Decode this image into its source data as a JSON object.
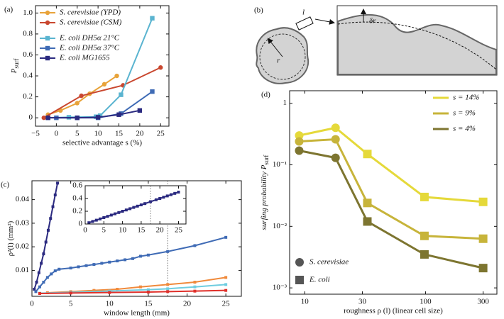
{
  "chart_data": [
    {
      "type": "line",
      "panel": "(a)",
      "xlabel": "selective advantage s (%)",
      "ylabel": "P",
      "ylabel_sub": "surf",
      "xlim": [
        -5,
        27
      ],
      "xticks": [
        {
          "value": -5,
          "label": "−5"
        },
        0,
        5,
        10,
        15,
        20,
        25
      ],
      "ylim": [
        -0.08,
        1.07
      ],
      "yticks": [
        0,
        0.2,
        0.4,
        0.6,
        0.8,
        {
          "value": 1,
          "label": "1.0"
        }
      ],
      "legend": "upper left",
      "series": [
        {
          "name": "S. cerevisiae (YPD)",
          "color": "#e8a33a",
          "marker": "circle",
          "x": [
            -2,
            1,
            5,
            8,
            11.5,
            14.5
          ],
          "values": [
            0.03,
            0.07,
            0.14,
            0.23,
            0.32,
            0.4
          ]
        },
        {
          "name": "S. cerevisiae (CSM)",
          "color": "#c9472f",
          "marker": "circle",
          "x": [
            -3,
            6,
            16,
            25
          ],
          "values": [
            0,
            0.21,
            0.31,
            0.48
          ]
        },
        {
          "name": "E. coli DH5α 21°C",
          "color": "#5ab4d0",
          "marker": "square",
          "x": [
            -2,
            3,
            9.5,
            10.5,
            15.5,
            23
          ],
          "values": [
            0,
            0.005,
            0.01,
            0.02,
            0.22,
            0.95
          ]
        },
        {
          "name": "E. coli DH5α 37°C",
          "color": "#3f6bb5",
          "marker": "square",
          "x": [
            0,
            5,
            10,
            15.5,
            23
          ],
          "values": [
            0,
            0,
            0,
            0.04,
            0.25
          ]
        },
        {
          "name": "E. coli MG1655",
          "color": "#2b2a80",
          "marker": "square",
          "x": [
            -2,
            5,
            10,
            15,
            20
          ],
          "values": [
            0,
            0,
            0.005,
            0.03,
            0.07
          ]
        }
      ]
    },
    {
      "type": "line",
      "panel": "(c)",
      "xlabel": "window length (mm)",
      "ylabel": "ρ²(l) (mm²)",
      "xlim": [
        0,
        27
      ],
      "xticks": [
        0,
        5,
        10,
        15,
        20,
        25
      ],
      "ylim": [
        -0.001,
        0.048
      ],
      "yticks": [
        0.01,
        0.02,
        0.03,
        0.04
      ],
      "reference_x": 17.5,
      "series": [
        {
          "color": "#2b2a80",
          "marker": "square",
          "x": [
            0.3,
            0.6,
            0.9,
            1.2,
            1.5,
            1.8,
            2.1,
            2.4,
            2.7,
            3.0,
            3.3
          ],
          "values": [
            0.002,
            0.005,
            0.009,
            0.013,
            0.017,
            0.022,
            0.027,
            0.032,
            0.037,
            0.042,
            0.047
          ]
        },
        {
          "color": "#3f6bb5",
          "marker": "square",
          "x": [
            0.5,
            1,
            1.5,
            2,
            2.5,
            3,
            3.5,
            5,
            6,
            7,
            8,
            9,
            10,
            11,
            12,
            13,
            14,
            15,
            17.5,
            21,
            25
          ],
          "values": [
            0.001,
            0.003,
            0.005,
            0.007,
            0.0085,
            0.0098,
            0.0105,
            0.011,
            0.0115,
            0.012,
            0.0125,
            0.013,
            0.0135,
            0.014,
            0.0145,
            0.015,
            0.016,
            0.0165,
            0.018,
            0.0205,
            0.024
          ]
        },
        {
          "color": "#f08a3c",
          "marker": "square",
          "x": [
            2,
            5,
            8,
            11,
            14,
            17.5,
            21,
            25
          ],
          "values": [
            0.0005,
            0.001,
            0.0015,
            0.002,
            0.003,
            0.004,
            0.005,
            0.007
          ]
        },
        {
          "color": "#6fcde0",
          "marker": "square",
          "x": [
            1,
            5,
            10,
            15,
            17.5,
            21,
            25
          ],
          "values": [
            0.0003,
            0.0007,
            0.0012,
            0.0018,
            0.0022,
            0.003,
            0.004
          ]
        },
        {
          "color": "#e0302a",
          "marker": "square",
          "x": [
            1,
            5,
            10,
            15,
            17.5,
            21,
            25
          ],
          "values": [
            0.0002,
            0.0004,
            0.0006,
            0.0008,
            0.001,
            0.0012,
            0.0015
          ]
        }
      ]
    },
    {
      "type": "line",
      "xlim": [
        0,
        27
      ],
      "xticks": [
        0,
        5,
        10,
        15,
        20,
        25
      ],
      "ylim": [
        0,
        0.6
      ],
      "yticks": [
        0,
        0.2,
        0.4,
        0.6
      ],
      "reference_x": 17.5,
      "series": [
        {
          "color": "#2b2a80",
          "marker": "square",
          "x": [
            1,
            2,
            3,
            4,
            5,
            6,
            7,
            8,
            9,
            10,
            11,
            12,
            13,
            14,
            15,
            16,
            17.5,
            19,
            20,
            21,
            22,
            23,
            24,
            25
          ],
          "values": [
            0.02,
            0.04,
            0.06,
            0.08,
            0.1,
            0.12,
            0.14,
            0.16,
            0.18,
            0.2,
            0.22,
            0.24,
            0.26,
            0.28,
            0.3,
            0.32,
            0.35,
            0.38,
            0.4,
            0.42,
            0.44,
            0.46,
            0.48,
            0.5
          ]
        }
      ]
    },
    {
      "type": "line",
      "panel": "(d)",
      "xlabel": "roughness ρ (l) (linear cell size)",
      "ylabel": "surfing probability P",
      "ylabel_sub": "surf",
      "xscale": "log",
      "yscale": "log",
      "xlim": [
        7.5,
        390
      ],
      "xticks": [
        10,
        30,
        100,
        300
      ],
      "ylim": [
        0.00079,
        1.6
      ],
      "yticks": [
        {
          "value": 0.001,
          "label": "10⁻³"
        },
        {
          "value": 0.01,
          "label": "10⁻²"
        },
        {
          "value": 0.1,
          "label": "10⁻¹"
        },
        1
      ],
      "legend": "upper right",
      "markers": [
        "circle",
        "circle",
        "square",
        "square",
        "square"
      ],
      "marker_legend": [
        {
          "label": "S. cerevisiae",
          "marker": "circle"
        },
        {
          "label": "E. coli",
          "marker": "square"
        }
      ],
      "series": [
        {
          "name": "s = 14%",
          "color": "#e5d93a",
          "x": [
            9,
            18,
            33,
            98,
            300
          ],
          "values": [
            0.3,
            0.4,
            0.15,
            0.03,
            0.025
          ]
        },
        {
          "name": "s = 9%",
          "color": "#c7b43a",
          "x": [
            9,
            18,
            33,
            98,
            300
          ],
          "values": [
            0.24,
            0.26,
            0.024,
            0.007,
            0.0063
          ]
        },
        {
          "name": "s = 4%",
          "color": "#7d7530",
          "x": [
            9,
            18,
            33,
            98,
            300
          ],
          "values": [
            0.17,
            0.13,
            0.012,
            0.0035,
            0.0021
          ]
        }
      ]
    }
  ],
  "diagram": {
    "panel": "(b)",
    "box_label": "l",
    "radius_label": "r",
    "deviation_label": "δr"
  }
}
